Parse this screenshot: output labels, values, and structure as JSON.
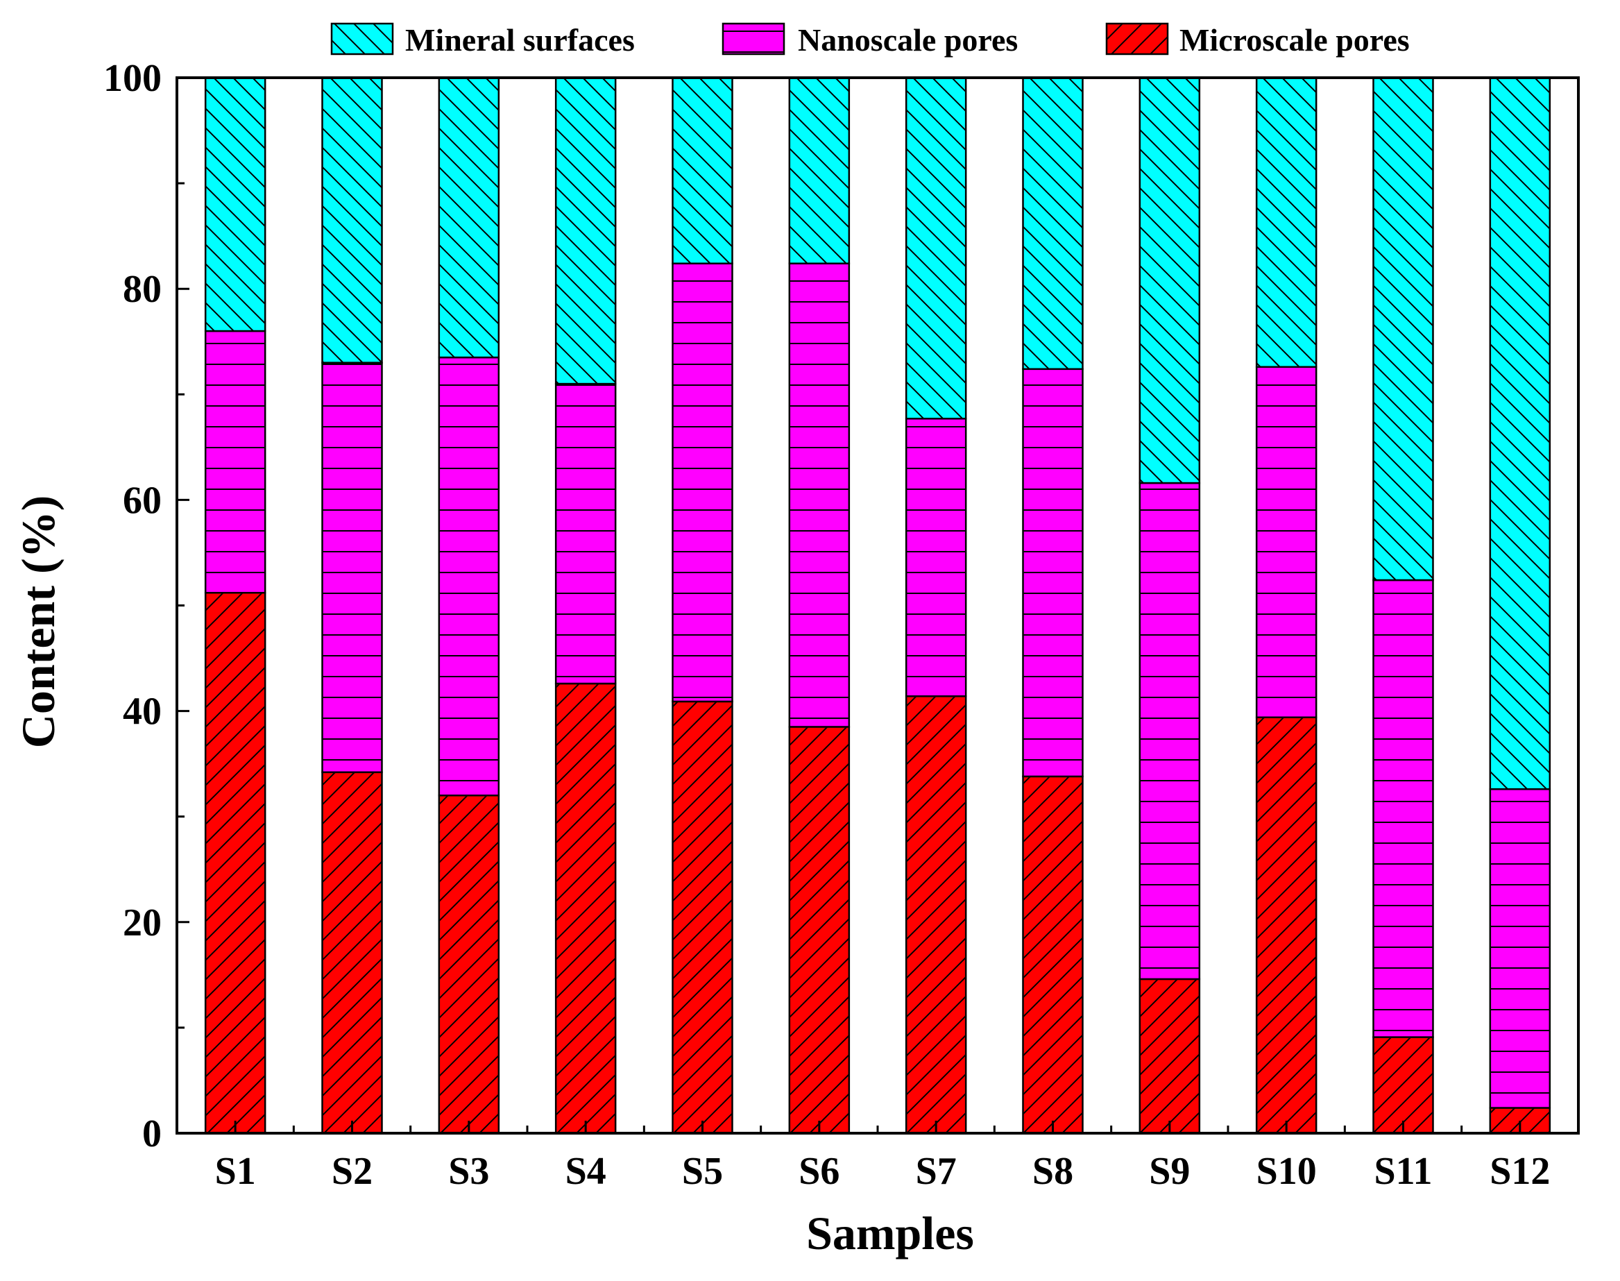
{
  "chart_data": {
    "type": "bar",
    "stacked": true,
    "title": "",
    "xlabel": "Samples",
    "ylabel": "Content (%)",
    "ylim": [
      0,
      100
    ],
    "yticks": [
      0,
      20,
      40,
      60,
      80,
      100
    ],
    "grid": false,
    "legend_position": "top",
    "categories": [
      "S1",
      "S2",
      "S3",
      "S4",
      "S5",
      "S6",
      "S7",
      "S8",
      "S9",
      "S10",
      "S11",
      "S12"
    ],
    "series": [
      {
        "name": "Microscale pores",
        "color": "#ff0000",
        "pattern": "diagonal-up",
        "values": [
          51.2,
          34.2,
          32.0,
          42.6,
          40.9,
          38.5,
          41.4,
          33.8,
          14.6,
          39.4,
          9.1,
          2.4
        ]
      },
      {
        "name": "Nanoscale pores",
        "color": "#ff00ff",
        "pattern": "horizontal",
        "values": [
          24.8,
          38.8,
          41.5,
          28.4,
          41.5,
          43.9,
          26.3,
          38.6,
          47.0,
          33.2,
          43.3,
          30.2
        ]
      },
      {
        "name": "Mineral surfaces",
        "color": "#00ffff",
        "pattern": "diagonal-down",
        "values": [
          24.0,
          27.0,
          26.5,
          29.0,
          17.6,
          17.6,
          32.3,
          27.6,
          38.4,
          27.4,
          47.6,
          67.4
        ]
      }
    ],
    "legend_order": [
      "Mineral surfaces",
      "Nanoscale pores",
      "Microscale pores"
    ]
  }
}
